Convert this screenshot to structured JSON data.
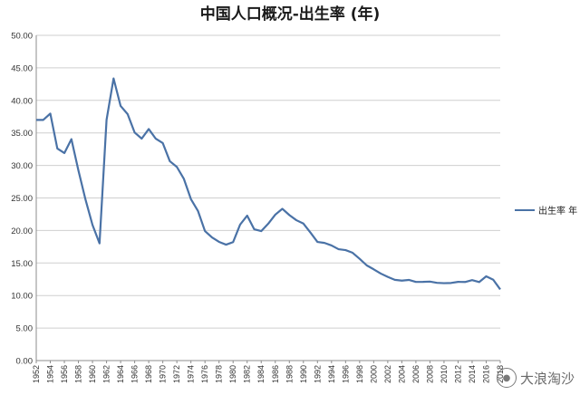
{
  "chart_data": {
    "type": "line",
    "title": "中国人口概况-出生率 (年)",
    "xlabel": "",
    "ylabel": "",
    "ylim": [
      0,
      50
    ],
    "yticks": [
      "0.00",
      "5.00",
      "10.00",
      "15.00",
      "20.00",
      "25.00",
      "30.00",
      "35.00",
      "40.00",
      "45.00",
      "50.00"
    ],
    "grid": true,
    "legend_position": "right",
    "x_tick_labels": [
      "1952",
      "1954",
      "1956",
      "1958",
      "1960",
      "1962",
      "1964",
      "1966",
      "1968",
      "1970",
      "1972",
      "1974",
      "1976",
      "1978",
      "1980",
      "1982",
      "1984",
      "1986",
      "1988",
      "1990",
      "1992",
      "1994",
      "1996",
      "1998",
      "2000",
      "2002",
      "2004",
      "2006",
      "2008",
      "2010",
      "2012",
      "2014",
      "2016",
      "2018"
    ],
    "x": [
      1952,
      1953,
      1954,
      1955,
      1956,
      1957,
      1958,
      1959,
      1960,
      1961,
      1962,
      1963,
      1964,
      1965,
      1966,
      1967,
      1968,
      1969,
      1970,
      1971,
      1972,
      1973,
      1974,
      1975,
      1976,
      1977,
      1978,
      1979,
      1980,
      1981,
      1982,
      1983,
      1984,
      1985,
      1986,
      1987,
      1988,
      1989,
      1990,
      1991,
      1992,
      1993,
      1994,
      1995,
      1996,
      1997,
      1998,
      1999,
      2000,
      2001,
      2002,
      2003,
      2004,
      2005,
      2006,
      2007,
      2008,
      2009,
      2010,
      2011,
      2012,
      2013,
      2014,
      2015,
      2016,
      2017,
      2018
    ],
    "series": [
      {
        "name": "出生率 年",
        "color": "#4a72a6",
        "values": [
          37.0,
          37.0,
          37.97,
          32.6,
          31.9,
          34.03,
          29.22,
          24.78,
          20.86,
          18.02,
          37.01,
          43.37,
          39.14,
          37.88,
          35.05,
          34.12,
          35.59,
          34.11,
          33.43,
          30.65,
          29.77,
          27.93,
          24.82,
          23.01,
          19.91,
          18.93,
          18.25,
          17.82,
          18.21,
          20.91,
          22.28,
          20.19,
          19.9,
          21.04,
          22.43,
          23.33,
          22.37,
          21.58,
          21.06,
          19.68,
          18.24,
          18.09,
          17.7,
          17.12,
          16.98,
          16.57,
          15.64,
          14.64,
          14.03,
          13.38,
          12.86,
          12.41,
          12.29,
          12.4,
          12.09,
          12.1,
          12.14,
          11.95,
          11.9,
          11.93,
          12.1,
          12.08,
          12.37,
          12.07,
          12.95,
          12.43,
          10.94
        ]
      }
    ]
  },
  "watermark": {
    "text": "大浪淘沙",
    "icon": "wechat-icon"
  }
}
